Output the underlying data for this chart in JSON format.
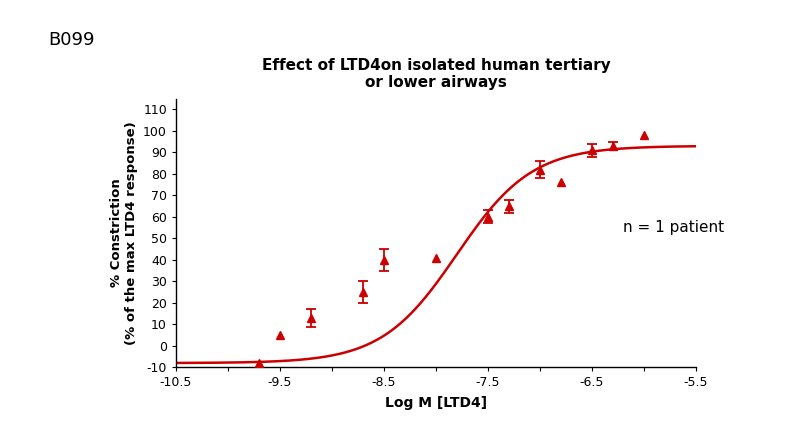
{
  "title_line1": "Effect of LTD4on isolated human tertiary",
  "title_line2": "or lower airways",
  "label_id": "B099",
  "xlabel": "Log M [LTD4]",
  "ylabel_line1": "% Constriction",
  "ylabel_line2": "(% of the max LTD4 response)",
  "annotation": "n = 1 patient",
  "color": "#cc0000",
  "data_x": [
    -9.7,
    -9.5,
    -9.2,
    -8.7,
    -8.5,
    -8.0,
    -7.5,
    -7.3,
    -7.0,
    -6.8,
    -6.5,
    -6.3,
    -6.0
  ],
  "data_y": [
    -8,
    5,
    13,
    25,
    40,
    41,
    60,
    65,
    82,
    76,
    91,
    93,
    98
  ],
  "data_yerr": [
    0,
    0,
    4,
    5,
    5,
    0,
    3,
    3,
    4,
    0,
    3,
    2,
    0
  ],
  "xlim": [
    -10.5,
    -5.5
  ],
  "ylim": [
    -10,
    115
  ],
  "xticks": [
    -10.5,
    -10.0,
    -9.5,
    -9.0,
    -8.5,
    -8.0,
    -7.5,
    -7.0,
    -6.5,
    -6.0,
    -5.5
  ],
  "xticklabels": [
    "-10.5",
    "",
    "-9.5",
    "",
    "-8.5",
    "",
    "-7.5",
    "",
    "-6.5",
    "",
    "-5.5"
  ],
  "yticks": [
    -10,
    0,
    10,
    20,
    30,
    40,
    50,
    60,
    70,
    80,
    90,
    100,
    110
  ],
  "title_fontsize": 11,
  "label_fontsize": 10,
  "axis_fontsize": 9,
  "annotation_fontsize": 11,
  "label_id_fontsize": 13
}
